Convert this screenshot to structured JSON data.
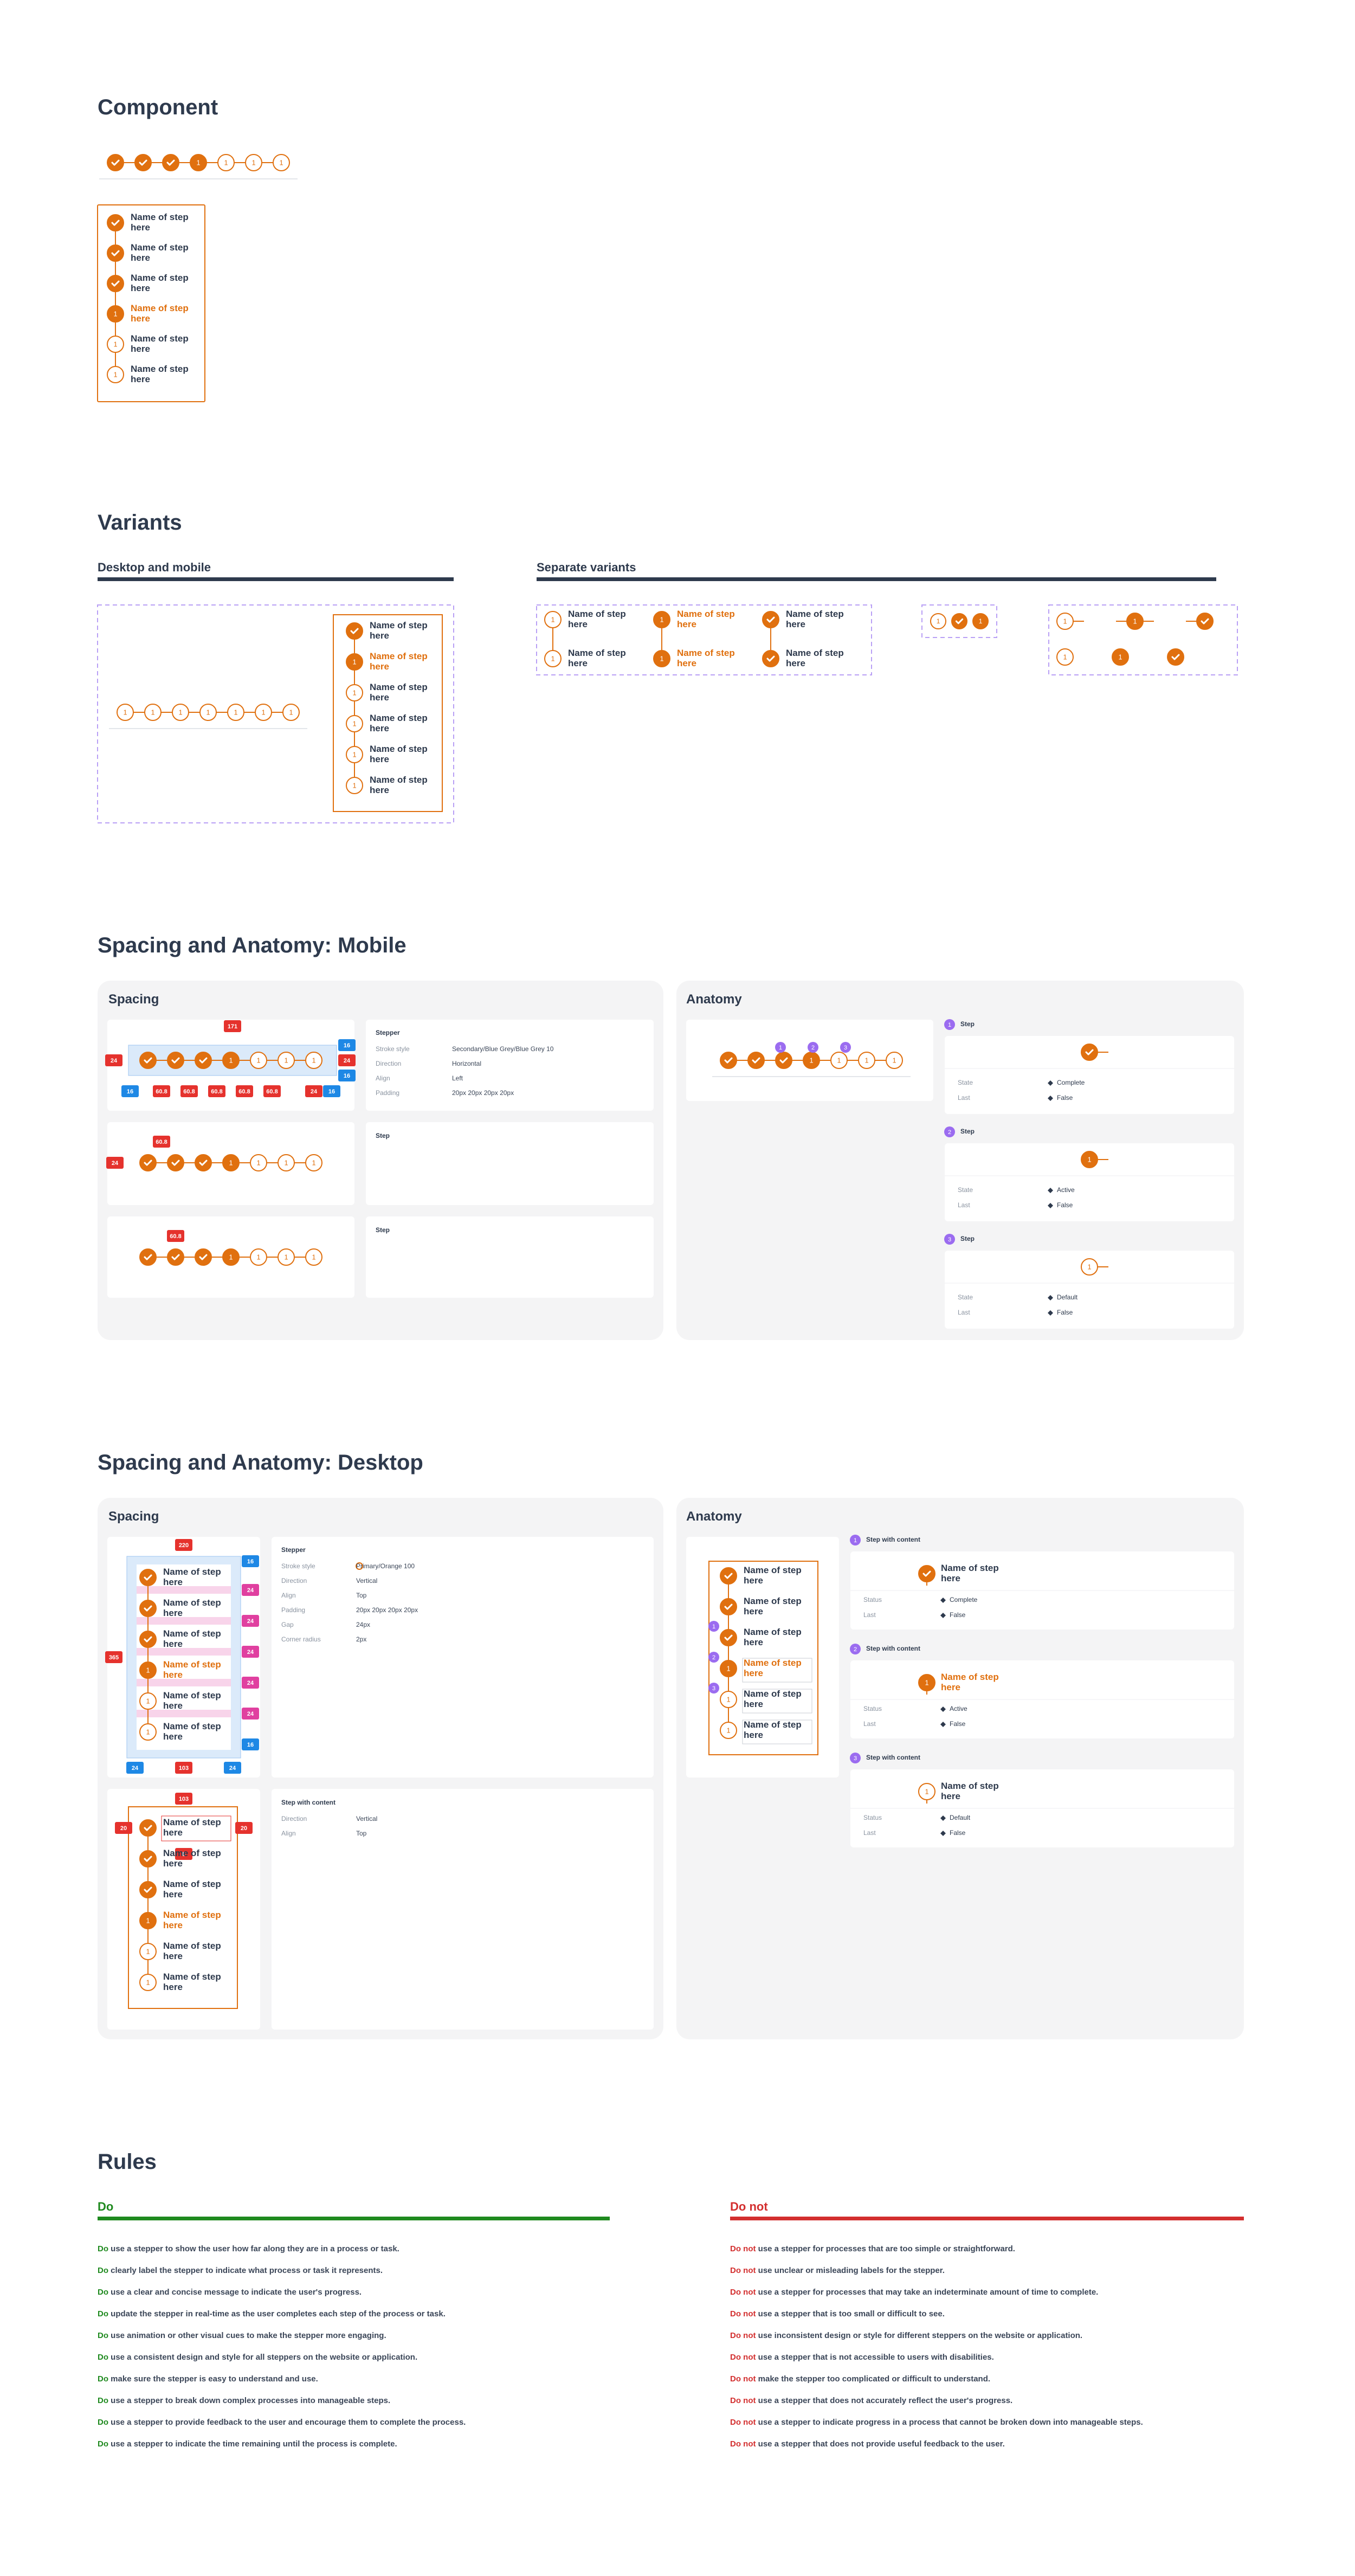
{
  "component": {
    "title": "Component"
  },
  "step": {
    "label": "Name of step here",
    "number": "1"
  },
  "variants": {
    "title": "Variants",
    "desktop_mobile": "Desktop and mobile",
    "separate": "Separate variants"
  },
  "mobile": {
    "title": "Spacing and Anatomy: Mobile",
    "spacing": "Spacing",
    "anatomy": "Anatomy",
    "badges": [
      {
        "text": "171",
        "color": "#e5322d"
      },
      {
        "text": "24",
        "color": "#e5322d"
      },
      {
        "text": "16",
        "color": "#1e88e5"
      },
      {
        "text": "24",
        "color": "#e5322d"
      },
      {
        "text": "16",
        "color": "#1e88e5"
      },
      {
        "text": "16",
        "color": "#1e88e5"
      },
      {
        "text": "60.8",
        "color": "#e5322d"
      },
      {
        "text": "60.8",
        "color": "#e5322d"
      },
      {
        "text": "60.8",
        "color": "#e5322d"
      },
      {
        "text": "60.8",
        "color": "#e5322d"
      },
      {
        "text": "60.8",
        "color": "#e5322d"
      },
      {
        "text": "24",
        "color": "#e5322d"
      },
      {
        "text": "16",
        "color": "#1e88e5"
      },
      {
        "text": "60.8",
        "color": "#e5322d"
      },
      {
        "text": "24",
        "color": "#e5322d"
      },
      {
        "text": "60.8",
        "color": "#e5322d"
      }
    ],
    "stepper_props": {
      "heading": "Stepper",
      "rows": [
        {
          "key": "Stroke style",
          "value": "Secondary/Blue Grey/Blue Grey 10"
        },
        {
          "key": "Direction",
          "value": "Horizontal"
        },
        {
          "key": "Align",
          "value": "Left"
        },
        {
          "key": "Padding",
          "value": "20px 20px 20px 20px"
        }
      ]
    },
    "step_heading": "Step",
    "anatomy_items": [
      {
        "marker": "1",
        "heading": "Step",
        "rows": [
          {
            "key": "State",
            "value": "Complete"
          },
          {
            "key": "Last",
            "value": "False"
          }
        ]
      },
      {
        "marker": "2",
        "heading": "Step",
        "rows": [
          {
            "key": "State",
            "value": "Active"
          },
          {
            "key": "Last",
            "value": "False"
          }
        ]
      },
      {
        "marker": "3",
        "heading": "Step",
        "rows": [
          {
            "key": "State",
            "value": "Default"
          },
          {
            "key": "Last",
            "value": "False"
          }
        ]
      }
    ]
  },
  "desktop": {
    "title": "Spacing and Anatomy: Desktop",
    "spacing": "Spacing",
    "anatomy": "Anatomy",
    "badges": [
      {
        "text": "220",
        "color": "#e5322d"
      },
      {
        "text": "365",
        "color": "#e5322d"
      },
      {
        "text": "24",
        "color": "#1e88e5"
      },
      {
        "text": "103",
        "color": "#e5322d"
      },
      {
        "text": "24",
        "color": "#1e88e5"
      },
      {
        "text": "16",
        "color": "#1e88e5"
      },
      {
        "text": "24",
        "color": "#e040a0"
      },
      {
        "text": "24",
        "color": "#e040a0"
      },
      {
        "text": "24",
        "color": "#e040a0"
      },
      {
        "text": "24",
        "color": "#e040a0"
      },
      {
        "text": "24",
        "color": "#e040a0"
      },
      {
        "text": "16",
        "color": "#1e88e5"
      },
      {
        "text": "103",
        "color": "#e5322d"
      },
      {
        "text": "20",
        "color": "#e5322d"
      },
      {
        "text": "20",
        "color": "#e5322d"
      },
      {
        "text": "8",
        "color": "#e5322d"
      }
    ],
    "stepper_props": {
      "heading": "Stepper",
      "rows": [
        {
          "key": "Stroke style",
          "value": "Primary/Orange 100"
        },
        {
          "key": "Direction",
          "value": "Vertical"
        },
        {
          "key": "Align",
          "value": "Top"
        },
        {
          "key": "Padding",
          "value": "20px 20px 20px 20px"
        },
        {
          "key": "Gap",
          "value": "24px"
        },
        {
          "key": "Corner radius",
          "value": "2px"
        }
      ]
    },
    "content_props": {
      "heading": "Step with content",
      "rows": [
        {
          "key": "Direction",
          "value": "Vertical"
        },
        {
          "key": "Align",
          "value": "Top"
        }
      ]
    },
    "anatomy_items": [
      {
        "marker": "1",
        "heading": "Step with content",
        "rows": [
          {
            "key": "Status",
            "value": "Complete"
          },
          {
            "key": "Last",
            "value": "False"
          }
        ]
      },
      {
        "marker": "2",
        "heading": "Step with content",
        "rows": [
          {
            "key": "Status",
            "value": "Active"
          },
          {
            "key": "Last",
            "value": "False"
          }
        ]
      },
      {
        "marker": "3",
        "heading": "Step with content",
        "rows": [
          {
            "key": "Status",
            "value": "Default"
          },
          {
            "key": "Last",
            "value": "False"
          }
        ]
      }
    ]
  },
  "rules": {
    "title": "Rules",
    "do": {
      "heading": "Do",
      "items": [
        "use a stepper to show the user how far along they are in a process or task.",
        "clearly label the stepper to indicate what process or task it represents.",
        "use a clear and concise message to indicate the user's progress.",
        "update the stepper in real-time as the user completes each step of the process or task.",
        "use animation or other visual cues to make the stepper more engaging.",
        "use a consistent design and style for all steppers on the website or application.",
        "make sure the stepper is easy to understand and use.",
        "use a stepper to break down complex processes into manageable steps.",
        "use a stepper to provide feedback to the user and encourage them to complete the process.",
        "use a stepper to indicate the time remaining until the process is complete."
      ]
    },
    "dont": {
      "heading": "Do not",
      "items": [
        "use a stepper for processes that are too simple or straightforward.",
        "use unclear or misleading labels for the stepper.",
        "use a stepper for processes that may take an indeterminate amount of time to complete.",
        "use a stepper that is too small or difficult to see.",
        "use inconsistent design or style for different steppers on the website or application.",
        "use a stepper that is not accessible to users with disabilities.",
        "make the stepper too complicated or difficult to understand.",
        "use a stepper that does not accurately reflect the user's progress.",
        "use a stepper to indicate progress in a process that cannot be broken down into manageable steps.",
        "use a stepper that does not provide useful feedback to the user."
      ]
    }
  }
}
